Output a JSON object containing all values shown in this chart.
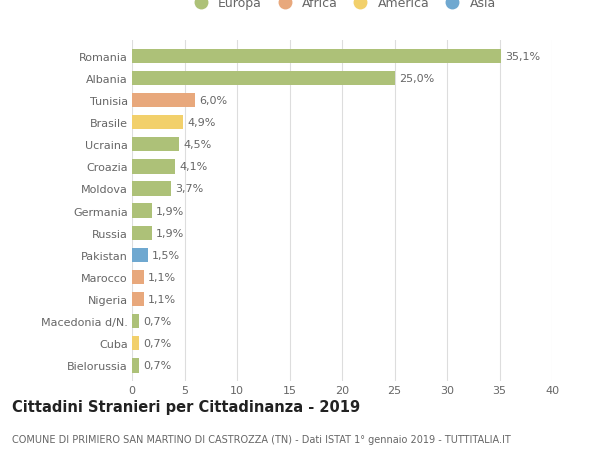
{
  "countries": [
    "Romania",
    "Albania",
    "Tunisia",
    "Brasile",
    "Ucraina",
    "Croazia",
    "Moldova",
    "Germania",
    "Russia",
    "Pakistan",
    "Marocco",
    "Nigeria",
    "Macedonia d/N.",
    "Cuba",
    "Bielorussia"
  ],
  "values": [
    35.1,
    25.0,
    6.0,
    4.9,
    4.5,
    4.1,
    3.7,
    1.9,
    1.9,
    1.5,
    1.1,
    1.1,
    0.7,
    0.7,
    0.7
  ],
  "labels": [
    "35,1%",
    "25,0%",
    "6,0%",
    "4,9%",
    "4,5%",
    "4,1%",
    "3,7%",
    "1,9%",
    "1,9%",
    "1,5%",
    "1,1%",
    "1,1%",
    "0,7%",
    "0,7%",
    "0,7%"
  ],
  "continents": [
    "Europa",
    "Europa",
    "Africa",
    "America",
    "Europa",
    "Europa",
    "Europa",
    "Europa",
    "Europa",
    "Asia",
    "Africa",
    "Africa",
    "Europa",
    "America",
    "Europa"
  ],
  "colors": {
    "Europa": "#adc178",
    "Africa": "#e8a87c",
    "America": "#f2d06b",
    "Asia": "#6fa8d0"
  },
  "legend_order": [
    "Europa",
    "Africa",
    "America",
    "Asia"
  ],
  "legend_colors": {
    "Europa": "#adc178",
    "Africa": "#e8a87c",
    "America": "#f2d06b",
    "Asia": "#6fa8d0"
  },
  "title": "Cittadini Stranieri per Cittadinanza - 2019",
  "subtitle": "COMUNE DI PRIMIERO SAN MARTINO DI CASTROZZA (TN) - Dati ISTAT 1° gennaio 2019 - TUTTITALIA.IT",
  "xlim": [
    0,
    40
  ],
  "xticks": [
    0,
    5,
    10,
    15,
    20,
    25,
    30,
    35,
    40
  ],
  "background_color": "#ffffff",
  "grid_color": "#dddddd",
  "bar_height": 0.65,
  "label_fontsize": 8,
  "tick_fontsize": 8,
  "title_fontsize": 10.5,
  "subtitle_fontsize": 7
}
